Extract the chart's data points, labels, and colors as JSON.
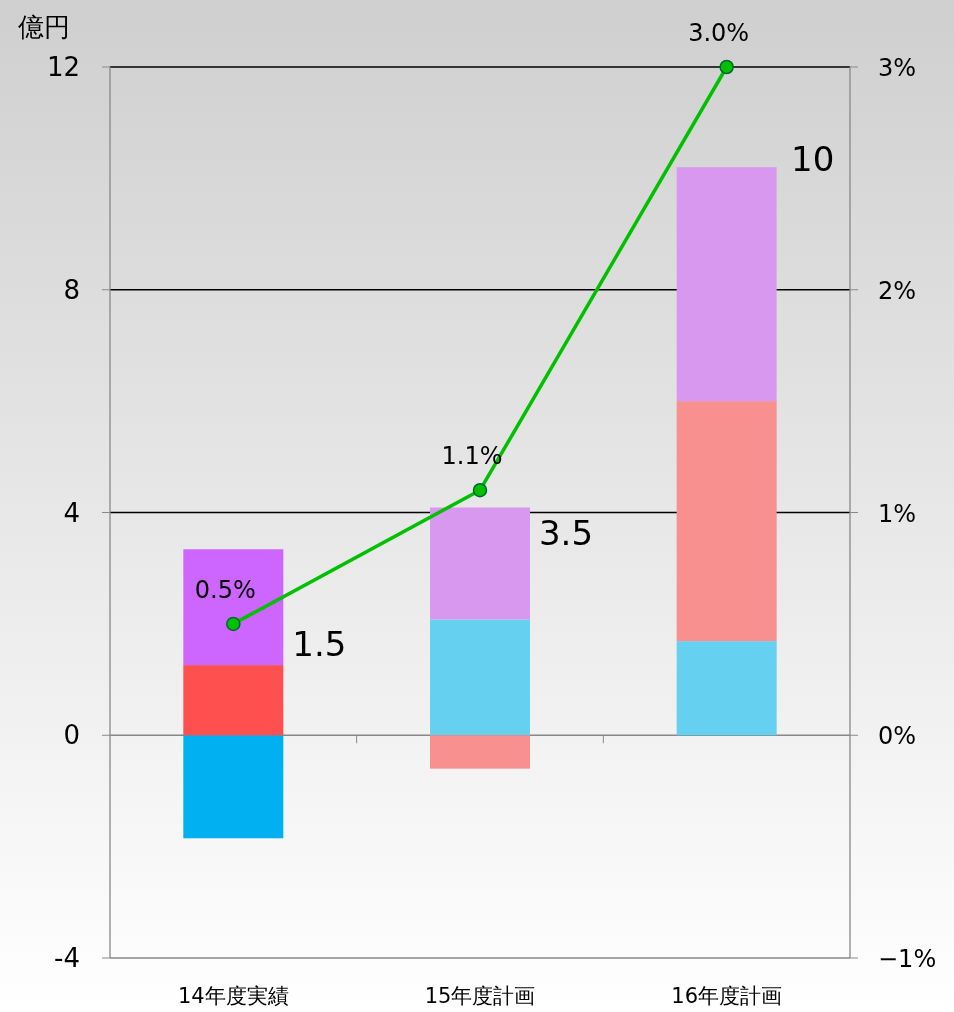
{
  "chart_data": {
    "type": "bar",
    "stacked": true,
    "ylabel": "億円",
    "categories": [
      "14年度実績",
      "15年度計画",
      "16年度計画"
    ],
    "series": [
      {
        "colors": [
          "#00b0f0",
          "#66d0f0",
          "#66d0f0"
        ],
        "values": [
          -1.85,
          2.08,
          1.69
        ]
      },
      {
        "colors": [
          "#ff5050",
          "#f89090",
          "#f89090"
        ],
        "values": [
          1.26,
          -0.6,
          4.31
        ]
      },
      {
        "colors": [
          "#cc66ff",
          "#d898f0",
          "#d898f0"
        ],
        "values": [
          2.08,
          2.01,
          4.2
        ]
      },
      {
        "type": "line",
        "axis": "y2",
        "color": "#00c000",
        "values": [
          0.5,
          1.1,
          3.0
        ],
        "value_labels": [
          "0.5%",
          "1.1%",
          "3.0%"
        ]
      }
    ],
    "totals": [
      "1.5",
      "3.5",
      "10"
    ],
    "ylim": [
      -4,
      12
    ],
    "yticks": [
      -4,
      0,
      4,
      8,
      12
    ],
    "y2lim": [
      -1,
      3
    ],
    "y2ticks": [
      {
        "value": -1,
        "label": "−1%"
      },
      {
        "value": 0,
        "label": "0%"
      },
      {
        "value": 1,
        "label": "1%"
      },
      {
        "value": 2,
        "label": "2%"
      },
      {
        "value": 3,
        "label": "3%"
      }
    ],
    "grid": "y",
    "marker": "circle"
  }
}
